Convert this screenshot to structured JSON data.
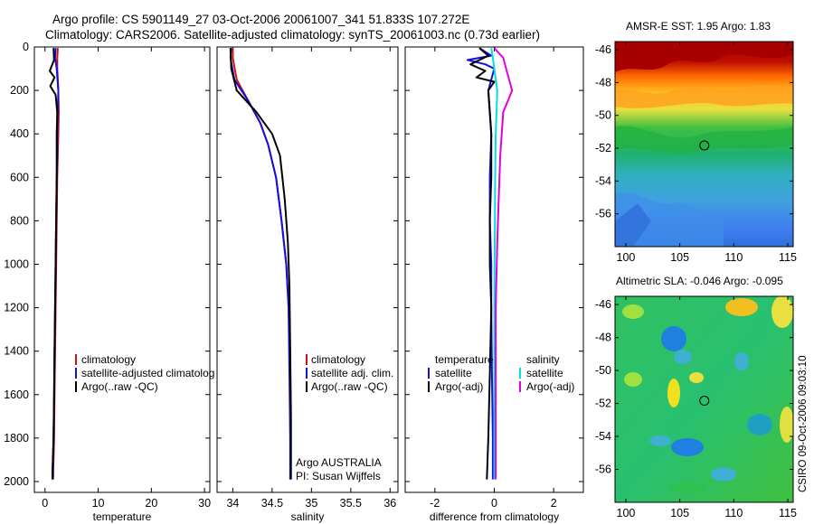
{
  "header": {
    "line1": "Argo profile: CS 5901149_27 03-Oct-2006 20061007_341 51.833S 107.272E",
    "line2": "Climatology: CARS2006. Satellite-adjusted climatology: synTS_20061003.nc (0.73d earlier)"
  },
  "stamp": "CSIRO 09-Oct-2006 09:03:10",
  "colors": {
    "climatology": "#d01010",
    "satellite": "#1010e0",
    "argo": "#000000",
    "salinity_satellite": "#00e0e0",
    "salinity_argo": "#e000e0"
  },
  "chart_data": [
    {
      "type": "line",
      "xlabel": "temperature",
      "ylabel": "",
      "xlim": [
        -2,
        31
      ],
      "ylim": [
        2050,
        0
      ],
      "xticks": [
        "0",
        "10",
        "20",
        "30"
      ],
      "yticks": [
        "0",
        "200",
        "400",
        "600",
        "800",
        "1000",
        "1200",
        "1400",
        "1600",
        "1800",
        "2000"
      ],
      "legend": [
        "climatology",
        "satellite-adjusted climatolog",
        "Argo(..raw -QC)"
      ],
      "series": [
        {
          "name": "climatology",
          "color": "#d01010",
          "x": [
            2.4,
            2.3,
            2.3,
            2.5,
            2.6,
            2.5,
            2.4,
            2.3,
            2.2,
            2.1,
            2.0,
            1.9,
            1.8,
            1.7,
            1.6,
            1.5
          ],
          "y": [
            5,
            50,
            100,
            200,
            300,
            400,
            500,
            600,
            800,
            1000,
            1200,
            1400,
            1600,
            1800,
            1900,
            1990
          ]
        },
        {
          "name": "satellite-adjusted climatolog",
          "color": "#1010e0",
          "x": [
            2.0,
            1.9,
            2.2,
            2.5,
            2.4,
            2.3,
            2.3,
            2.2,
            2.1,
            2.0,
            1.9,
            1.8,
            1.7,
            1.6,
            1.5,
            1.5
          ],
          "y": [
            5,
            50,
            100,
            200,
            300,
            400,
            500,
            600,
            800,
            1000,
            1200,
            1400,
            1600,
            1800,
            1900,
            1990
          ]
        },
        {
          "name": "Argo(..raw -QC)",
          "color": "#000000",
          "x": [
            1.6,
            1.7,
            0.9,
            1.8,
            1.0,
            2.0,
            2.3,
            2.2,
            2.2,
            2.1,
            2.0,
            1.9,
            1.8,
            1.7,
            1.6,
            1.4,
            1.4
          ],
          "y": [
            5,
            60,
            110,
            140,
            180,
            220,
            300,
            400,
            600,
            800,
            1000,
            1200,
            1400,
            1600,
            1800,
            1950,
            1990
          ]
        }
      ]
    },
    {
      "type": "line",
      "xlabel": "salinity",
      "ylabel": "",
      "xlim": [
        33.8,
        36.1
      ],
      "ylim": [
        2050,
        0
      ],
      "xticks": [
        "34",
        "34.5",
        "35",
        "35.5",
        "36"
      ],
      "legend": [
        "climatology",
        "satellite adj. clim.",
        "Argo(..raw -QC)",
        "Argo AUSTRALIA",
        "PI: Susan Wijffels"
      ],
      "series": [
        {
          "name": "climatology",
          "color": "#d01010",
          "x": [
            34.0,
            34.0,
            34.05,
            34.2,
            34.35,
            34.45,
            34.55,
            34.62,
            34.68,
            34.71,
            34.73,
            34.73,
            34.73
          ],
          "y": [
            5,
            50,
            150,
            250,
            350,
            450,
            600,
            800,
            1000,
            1200,
            1500,
            1800,
            1990
          ]
        },
        {
          "name": "satellite adj. clim.",
          "color": "#1010e0",
          "x": [
            33.98,
            33.97,
            34.02,
            34.2,
            34.35,
            34.45,
            34.55,
            34.62,
            34.68,
            34.71,
            34.72,
            34.73,
            34.73
          ],
          "y": [
            5,
            50,
            150,
            250,
            350,
            450,
            600,
            800,
            1000,
            1200,
            1500,
            1800,
            1990
          ]
        },
        {
          "name": "Argo(..raw -QC)",
          "color": "#000000",
          "x": [
            33.97,
            33.98,
            34.05,
            34.3,
            34.5,
            34.6,
            34.66,
            34.7,
            34.72,
            34.73,
            34.74,
            34.74
          ],
          "y": [
            5,
            100,
            200,
            300,
            400,
            500,
            700,
            900,
            1100,
            1400,
            1700,
            1990
          ]
        }
      ]
    },
    {
      "type": "line",
      "xlabel": "difference from climatology",
      "ylabel": "",
      "xlim": [
        -3,
        3
      ],
      "ylim": [
        2050,
        0
      ],
      "xticks": [
        "-2",
        "0",
        "2"
      ],
      "legend_temperature": {
        "title": "temperature",
        "items": [
          "satellite",
          "Argo(-adj)"
        ]
      },
      "legend_salinity": {
        "title": "salinity",
        "items": [
          "satellite",
          "Argo(-adj)"
        ]
      },
      "series": [
        {
          "name": "temperature satellite",
          "color": "#1010e0",
          "x": [
            -0.5,
            -0.1,
            -0.9,
            -0.3,
            0.0,
            -0.2,
            -0.1,
            -0.15,
            -0.15,
            -0.1,
            -0.1,
            -0.08,
            -0.05,
            -0.05
          ],
          "y": [
            5,
            40,
            60,
            80,
            100,
            200,
            400,
            600,
            800,
            1000,
            1200,
            1500,
            1800,
            1990
          ]
        },
        {
          "name": "temperature Argo(-adj)",
          "color": "#000000",
          "x": [
            -0.5,
            -0.2,
            -0.8,
            -0.3,
            -0.6,
            0.0,
            -0.2,
            -0.1,
            -0.1,
            -0.15,
            -0.15,
            -0.1,
            -0.15,
            -0.2,
            -0.25
          ],
          "y": [
            5,
            40,
            80,
            110,
            140,
            160,
            200,
            400,
            600,
            800,
            1000,
            1200,
            1500,
            1800,
            1990
          ]
        },
        {
          "name": "salinity satellite",
          "color": "#00e0e0",
          "x": [
            -0.1,
            -0.05,
            0.0,
            0.1,
            0.05,
            0.03,
            0.02,
            0.01,
            0.0,
            0.0,
            0.0
          ],
          "y": [
            5,
            50,
            100,
            200,
            400,
            600,
            800,
            1000,
            1400,
            1800,
            1990
          ]
        },
        {
          "name": "salinity Argo(-adj)",
          "color": "#e000e0",
          "x": [
            0.0,
            0.3,
            0.4,
            0.6,
            0.3,
            0.2,
            0.15,
            0.1,
            0.05,
            0.05,
            0.05
          ],
          "y": [
            5,
            50,
            100,
            200,
            300,
            500,
            700,
            900,
            1200,
            1500,
            1990
          ]
        }
      ]
    },
    {
      "type": "heatmap",
      "title": "AMSR-E SST: 1.95 Argo: 1.83",
      "xlim": [
        99,
        115.5
      ],
      "ylim": [
        -58,
        -45.5
      ],
      "xticks": [
        "100",
        "105",
        "110",
        "115"
      ],
      "yticks": [
        "-46",
        "-48",
        "-50",
        "-52",
        "-54",
        "-56"
      ],
      "marker": {
        "lon": 107.272,
        "lat": -51.833
      }
    },
    {
      "type": "heatmap",
      "title": "Altimetric SLA: -0.046 Argo: -0.095",
      "xlim": [
        99,
        115.5
      ],
      "ylim": [
        -58,
        -45.5
      ],
      "xticks": [
        "100",
        "105",
        "110",
        "115"
      ],
      "yticks": [
        "-46",
        "-48",
        "-50",
        "-52",
        "-54",
        "-56"
      ],
      "marker": {
        "lon": 107.272,
        "lat": -51.833
      }
    }
  ]
}
